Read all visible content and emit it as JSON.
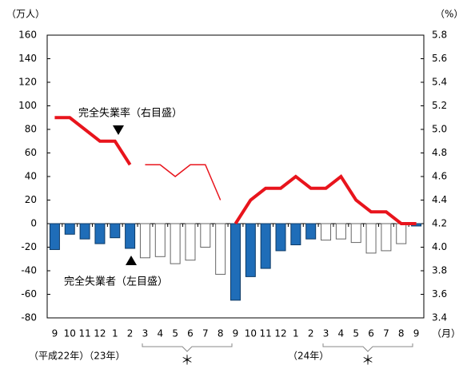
{
  "chart_data": {
    "type": "combo",
    "y_unit": "（万人）",
    "y2_unit": "（%）",
    "x_unit": "（月）",
    "categories": [
      "9",
      "10",
      "11",
      "12",
      "1",
      "2",
      "3",
      "4",
      "5",
      "6",
      "7",
      "8",
      "9",
      "10",
      "11",
      "12",
      "1",
      "2",
      "3",
      "4",
      "5",
      "6",
      "7",
      "8",
      "9"
    ],
    "ylim": [
      -80,
      160
    ],
    "yticks": [
      -80,
      -60,
      -40,
      -20,
      0,
      20,
      40,
      60,
      80,
      100,
      120,
      140,
      160
    ],
    "y2lim": [
      3.4,
      5.8
    ],
    "y2ticks": [
      3.4,
      3.6,
      3.8,
      {
        "value": 4.0,
        "label": "4.0"
      },
      4.2,
      4.4,
      4.6,
      4.8,
      {
        "value": 5.0,
        "label": "5.0"
      },
      5.2,
      5.4,
      5.6,
      5.8
    ],
    "series": [
      {
        "type": "bar",
        "axis": "y",
        "values": [
          -22,
          -9,
          -13,
          -17,
          -12,
          -21,
          -29,
          -28,
          -34,
          -31,
          -20,
          -43,
          -65,
          -45,
          -38,
          -23,
          -18,
          -13,
          -14,
          -13,
          -16,
          -25,
          -23,
          -17,
          -2
        ],
        "colors": [
          "#1f6db8",
          "#1f6db8",
          "#1f6db8",
          "#1f6db8",
          "#1f6db8",
          "#1f6db8",
          "#ffffff",
          "#ffffff",
          "#ffffff",
          "#ffffff",
          "#ffffff",
          "#ffffff",
          "#1f6db8",
          "#1f6db8",
          "#1f6db8",
          "#1f6db8",
          "#1f6db8",
          "#1f6db8",
          "#ffffff",
          "#ffffff",
          "#ffffff",
          "#ffffff",
          "#ffffff",
          "#ffffff",
          "#1f6db8"
        ]
      },
      {
        "type": "line",
        "axis": "y2",
        "color": "#e8141c",
        "style": "thick",
        "values": [
          5.1,
          5.1,
          5.0,
          4.9,
          4.9,
          4.7,
          null,
          null,
          null,
          null,
          null,
          null,
          4.2,
          4.4,
          4.5,
          4.5,
          4.6,
          4.5,
          4.5,
          4.6,
          4.4,
          4.3,
          4.3,
          4.2,
          4.2
        ]
      },
      {
        "type": "line",
        "axis": "y2",
        "color": "#e8141c",
        "style": "thin",
        "values": [
          null,
          null,
          null,
          null,
          null,
          null,
          4.7,
          4.7,
          4.6,
          4.7,
          4.7,
          4.4,
          null,
          null,
          null,
          null,
          null,
          null,
          null,
          null,
          null,
          null,
          null,
          null,
          null
        ]
      }
    ],
    "annotations": {
      "rate_label": "完全失業率（右目盛）",
      "unemployed_label": "完全失業者（左目盛）",
      "year_label_1": "（平成22年）（23年）",
      "year_label_2": "（24年）",
      "note_mark_1": "＊",
      "note_mark_2": "＊"
    }
  }
}
